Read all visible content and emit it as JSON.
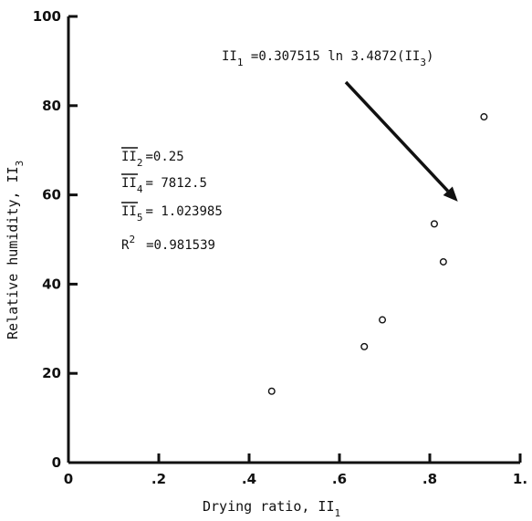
{
  "chart_data": {
    "type": "scatter",
    "title": "",
    "xlabel": "Drying ratio, II",
    "xlabel_sub": "1",
    "ylabel": "Relative humidity, II",
    "ylabel_sub": "3",
    "xlim": [
      0,
      1
    ],
    "ylim": [
      0,
      100
    ],
    "x_ticks": [
      0,
      0.2,
      0.4,
      0.6,
      0.8,
      1.0
    ],
    "x_tick_labels": [
      "0",
      ".2",
      ".4",
      ".6",
      ".8",
      "1."
    ],
    "y_ticks": [
      0,
      20,
      40,
      60,
      80,
      100
    ],
    "y_tick_labels": [
      "0",
      "20",
      "40",
      "60",
      "80",
      "100"
    ],
    "grid": false,
    "series": [
      {
        "marker": "open-circle",
        "points": [
          {
            "x": 0.45,
            "y": 16
          },
          {
            "x": 0.655,
            "y": 26
          },
          {
            "x": 0.695,
            "y": 32
          },
          {
            "x": 0.81,
            "y": 53.5
          },
          {
            "x": 0.83,
            "y": 45
          },
          {
            "x": 0.92,
            "y": 77.5
          }
        ]
      },
      {
        "kind": "fitted-curve",
        "equation": "II1 = 0.307515 ln 3.4872(II3)",
        "coef_a": 0.307515,
        "coef_b": 3.4872,
        "y_range": [
          16,
          77.5
        ]
      }
    ],
    "annotations": {
      "equation": {
        "lhs_main": "II",
        "lhs_sub": "1",
        "rhs_pre": " =0.307515 ln 3.4872(II",
        "rhs_sub": "3",
        "rhs_post": ")"
      },
      "arrow_to": {
        "x": 0.862,
        "y": 58.5
      },
      "stats": [
        {
          "label": "II",
          "sub": "2",
          "value": "=0.25",
          "overline": true
        },
        {
          "label": "II",
          "sub": "4",
          "value": "= 7812.5",
          "overline": true
        },
        {
          "label": "II",
          "sub": "5",
          "value": "= 1.023985",
          "overline": true
        },
        {
          "label": "R",
          "sup": "2",
          "value": "=0.981539",
          "overline": false
        }
      ]
    }
  }
}
